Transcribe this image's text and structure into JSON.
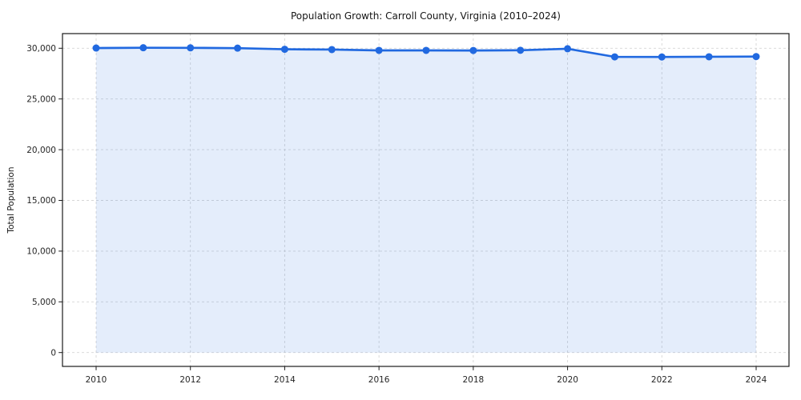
{
  "chart_data": {
    "type": "line",
    "title": "Population Growth: Carroll County, Virginia (2010–2024)",
    "xlabel": "",
    "ylabel": "Total Population",
    "x": [
      2010,
      2011,
      2012,
      2013,
      2014,
      2015,
      2016,
      2017,
      2018,
      2019,
      2020,
      2021,
      2022,
      2023,
      2024
    ],
    "series": [
      {
        "name": "Total Population",
        "values": [
          30020,
          30050,
          30040,
          30010,
          29900,
          29870,
          29790,
          29790,
          29780,
          29800,
          29950,
          29150,
          29140,
          29160,
          29180
        ]
      }
    ],
    "xticks": [
      2010,
      2012,
      2014,
      2016,
      2018,
      2020,
      2022,
      2024
    ],
    "yticks": [
      0,
      5000,
      10000,
      15000,
      20000,
      25000,
      30000
    ],
    "ylim": [
      -1400,
      31500
    ],
    "grid": true,
    "grid_style": "dashed",
    "legend": "none",
    "line_color": "#2169e0",
    "fill_color": "#2169e0",
    "fill_opacity": 0.12,
    "marker": "circle",
    "grid_color": "#cfcfcf",
    "spine_color": "#1a1a1a",
    "tick_text_color": "#262626"
  }
}
